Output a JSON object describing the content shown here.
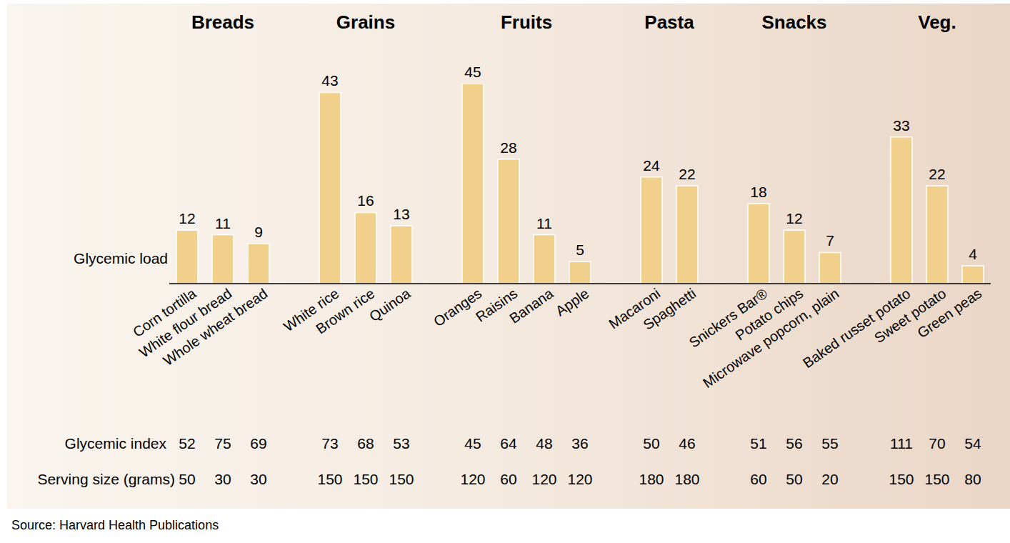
{
  "chart_data": {
    "type": "bar",
    "y_label": "Glycemic load",
    "source": "Source: Harvard Health Publications",
    "color": "#f0d08a",
    "data_labels": true,
    "tick_labels": "x",
    "ylim": [
      0,
      45
    ],
    "yticks": [],
    "categories": [
      "Corn tortilla",
      "White flour bread",
      "Whole wheat bread",
      null,
      "White rice",
      "Brown rice",
      "Quinoa",
      null,
      "Oranges",
      "Raisins",
      "Banana",
      "Apple",
      null,
      "Macaroni",
      "Spaghetti",
      null,
      "Snickers Bar®",
      "Potato chips",
      "Microwave popcorn, plain",
      null,
      "Baked russet potato",
      "Sweet potato",
      "Green peas"
    ],
    "groups": [
      "Breads",
      "Breads",
      "Breads",
      null,
      "Grains",
      "Grains",
      "Grains",
      null,
      "Fruits",
      "Fruits",
      "Fruits",
      "Fruits",
      null,
      "Pasta",
      "Pasta",
      null,
      "Snacks",
      "Snacks",
      "Snacks",
      null,
      "Veg.",
      "Veg.",
      "Veg."
    ],
    "values": [
      12,
      11,
      9,
      null,
      43,
      16,
      13,
      null,
      45,
      28,
      11,
      5,
      null,
      24,
      22,
      null,
      18,
      12,
      7,
      null,
      33,
      22,
      4
    ],
    "glycemic_index": {
      "label": "Glycemic index",
      "values": [
        52,
        75,
        69,
        null,
        73,
        68,
        53,
        null,
        45,
        64,
        48,
        36,
        null,
        50,
        46,
        null,
        51,
        56,
        55,
        null,
        111,
        70,
        54
      ]
    },
    "serving_size": {
      "label": "Serving size (grams)",
      "values": [
        50,
        30,
        30,
        null,
        150,
        150,
        150,
        null,
        120,
        60,
        120,
        120,
        null,
        180,
        180,
        null,
        60,
        50,
        20,
        null,
        150,
        150,
        80
      ]
    }
  }
}
